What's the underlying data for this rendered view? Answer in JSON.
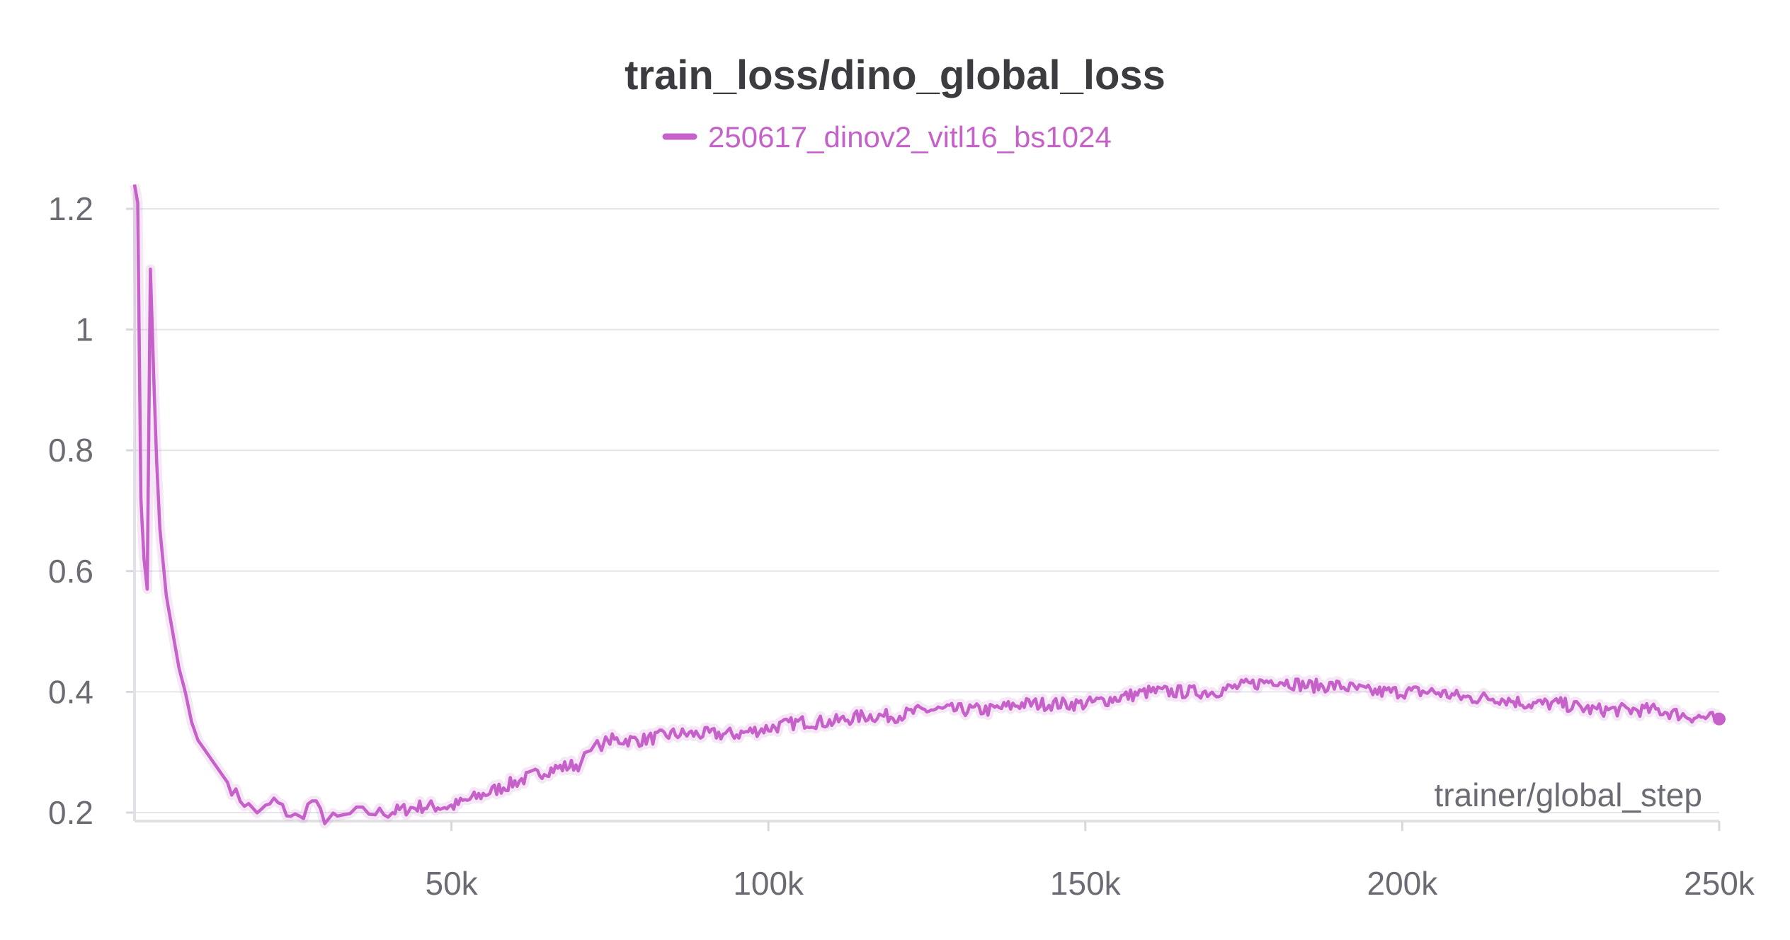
{
  "chart_data": {
    "type": "line",
    "title": "train_loss/dino_global_loss",
    "xlabel": "trainer/global_step",
    "ylabel": "",
    "xlim": [
      0,
      250000
    ],
    "ylim": [
      0.18,
      1.24
    ],
    "x_ticks": [
      50000,
      100000,
      150000,
      200000,
      250000
    ],
    "x_tick_labels": [
      "50k",
      "100k",
      "150k",
      "200k",
      "250k"
    ],
    "y_ticks": [
      0.2,
      0.4,
      0.6,
      0.8,
      1.0,
      1.2
    ],
    "y_tick_labels": [
      "0.2",
      "0.4",
      "0.6",
      "0.8",
      "1",
      "1.2"
    ],
    "grid": true,
    "legend_position": "top-center",
    "series": [
      {
        "name": "250617_dinov2_vitl16_bs1024",
        "color": "#c561c9",
        "x": [
          0,
          500,
          1000,
          1500,
          2000,
          2500,
          3000,
          3500,
          4000,
          5000,
          6000,
          7000,
          8000,
          9000,
          10000,
          12000,
          14000,
          16000,
          18000,
          20000,
          22000,
          24000,
          26000,
          28000,
          30000,
          32000,
          35000,
          38000,
          40000,
          45000,
          50000,
          55000,
          60000,
          65000,
          70000,
          73000,
          75000,
          80000,
          85000,
          90000,
          95000,
          100000,
          105000,
          110000,
          115000,
          120000,
          125000,
          130000,
          135000,
          140000,
          145000,
          150000,
          155000,
          160000,
          165000,
          170000,
          175000,
          180000,
          185000,
          190000,
          195000,
          200000,
          205000,
          210000,
          215000,
          220000,
          225000,
          230000,
          235000,
          240000,
          245000,
          250000
        ],
        "y": [
          1.24,
          1.21,
          0.72,
          0.62,
          0.57,
          1.1,
          0.93,
          0.78,
          0.67,
          0.56,
          0.5,
          0.44,
          0.4,
          0.35,
          0.32,
          0.29,
          0.26,
          0.23,
          0.21,
          0.2,
          0.22,
          0.2,
          0.19,
          0.22,
          0.19,
          0.19,
          0.2,
          0.2,
          0.2,
          0.21,
          0.21,
          0.23,
          0.25,
          0.27,
          0.28,
          0.31,
          0.32,
          0.32,
          0.33,
          0.33,
          0.33,
          0.34,
          0.35,
          0.35,
          0.36,
          0.36,
          0.37,
          0.37,
          0.37,
          0.38,
          0.38,
          0.38,
          0.39,
          0.4,
          0.4,
          0.4,
          0.41,
          0.42,
          0.41,
          0.41,
          0.4,
          0.4,
          0.4,
          0.39,
          0.39,
          0.38,
          0.38,
          0.37,
          0.37,
          0.37,
          0.36,
          0.355
        ]
      }
    ]
  }
}
